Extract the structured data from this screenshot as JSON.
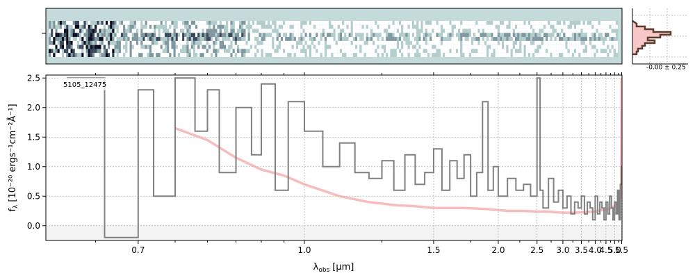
{
  "chart_data": [
    {
      "type": "heatmap",
      "panel": "2d-spectrum",
      "description_colors": {
        "background": "#c5dbdb",
        "high": "#0a0a1a",
        "low": "#ffffff"
      },
      "rows": 9,
      "x_range": [
        0.6,
        5.53
      ]
    },
    {
      "type": "line",
      "panel": "1d-spectrum",
      "label": "5105_12475",
      "xlabel": "λ",
      "xlabel_sub": "obs",
      "xlabel_unit": "[μm]",
      "ylabel": "f",
      "ylabel_sub": "λ",
      "ylabel_unit": "[10⁻²⁰ ergs⁻¹cm⁻²Å⁻¹]",
      "xscale": "reciprocal",
      "xlim": [
        0.6,
        5.53
      ],
      "ylim": [
        -0.25,
        2.55
      ],
      "x_ticks": [
        0.7,
        1.0,
        1.5,
        2.0,
        2.5,
        3.0,
        3.5,
        4.0,
        4.5,
        5.0,
        5.5
      ],
      "x_tick_labels": [
        "0.7",
        "1.0",
        "1.5",
        "2.0",
        "2.5",
        "3.0",
        "3.5",
        "4.0",
        "4.5",
        "5.0",
        "5.5"
      ],
      "y_ticks": [
        0.0,
        0.5,
        1.0,
        1.5,
        2.0,
        2.5
      ],
      "y_tick_labels": [
        "0.0",
        "0.5",
        "1.0",
        "1.5",
        "2.0",
        "2.5"
      ],
      "grid": true,
      "series": [
        {
          "role": "data",
          "color": "#808080",
          "style": "steps",
          "x": [
            0.62,
            0.66,
            0.7,
            0.72,
            0.75,
            0.78,
            0.8,
            0.82,
            0.85,
            0.88,
            0.9,
            0.93,
            0.96,
            1.0,
            1.05,
            1.1,
            1.15,
            1.2,
            1.25,
            1.3,
            1.35,
            1.4,
            1.45,
            1.5,
            1.55,
            1.6,
            1.65,
            1.7,
            1.75,
            1.8,
            1.85,
            1.9,
            1.95,
            2.0,
            2.1,
            2.2,
            2.3,
            2.4,
            2.5,
            2.55,
            2.6,
            2.7,
            2.8,
            2.9,
            3.0,
            3.1,
            3.2,
            3.3,
            3.4,
            3.5,
            3.6,
            3.7,
            3.8,
            3.9,
            4.0,
            4.1,
            4.2,
            4.3,
            4.4,
            4.5,
            4.6,
            4.7,
            4.8,
            4.9,
            5.0,
            5.1,
            5.2,
            5.3,
            5.4,
            5.5
          ],
          "y": [
            2.5,
            -0.2,
            2.3,
            0.5,
            2.5,
            1.6,
            2.3,
            0.9,
            2.0,
            1.2,
            2.4,
            0.6,
            2.1,
            1.6,
            1.0,
            1.4,
            0.9,
            0.8,
            1.1,
            0.6,
            1.2,
            0.7,
            0.9,
            1.3,
            0.6,
            1.1,
            0.8,
            1.2,
            0.5,
            0.9,
            2.1,
            0.6,
            1.0,
            0.5,
            0.8,
            0.6,
            0.7,
            0.5,
            2.5,
            0.6,
            0.3,
            0.8,
            0.4,
            0.6,
            0.3,
            0.5,
            0.2,
            0.4,
            0.3,
            0.5,
            0.2,
            0.4,
            0.3,
            0.1,
            0.5,
            0.2,
            0.4,
            0.3,
            0.1,
            0.4,
            0.2,
            0.5,
            0.3,
            0.1,
            0.4,
            0.2,
            0.6,
            0.1,
            0.7,
            1.0
          ]
        },
        {
          "role": "model",
          "color": "#f4a6a6",
          "style": "line",
          "x": [
            0.75,
            0.8,
            0.85,
            0.9,
            0.95,
            1.0,
            1.1,
            1.2,
            1.3,
            1.4,
            1.5,
            1.7,
            1.9,
            2.1,
            2.3,
            2.5,
            2.7,
            3.0,
            3.3,
            3.6,
            4.0,
            4.4,
            4.8,
            5.1,
            5.3,
            5.45,
            5.5
          ],
          "y": [
            1.65,
            1.45,
            1.15,
            0.95,
            0.85,
            0.7,
            0.5,
            0.4,
            0.35,
            0.33,
            0.3,
            0.3,
            0.28,
            0.25,
            0.25,
            0.24,
            0.24,
            0.22,
            0.22,
            0.23,
            0.24,
            0.27,
            0.3,
            0.35,
            0.4,
            0.5,
            2.5
          ]
        }
      ]
    },
    {
      "type": "histogram",
      "panel": "residual-histogram",
      "label": "-0.00 ± 0.25",
      "colors": {
        "fill": "#f8c8c8",
        "edge": "#5a3a2a"
      }
    }
  ]
}
